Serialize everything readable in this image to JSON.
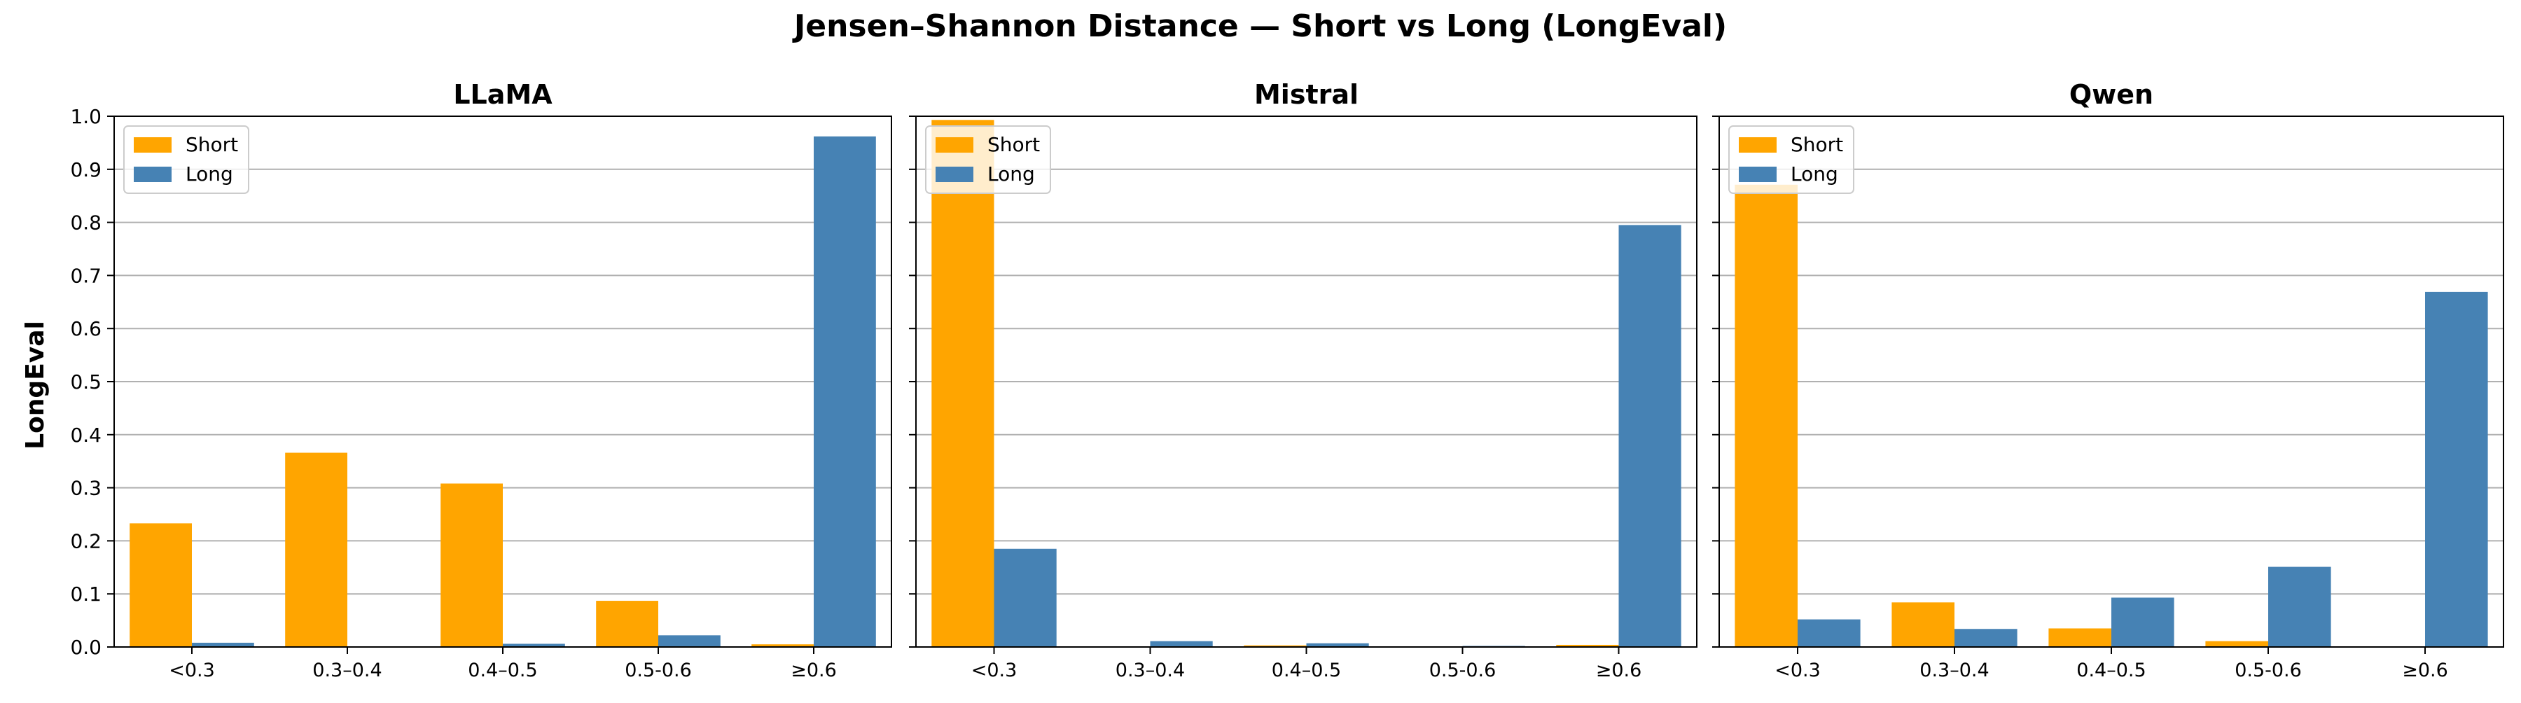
{
  "figure": {
    "title": "Jensen–Shannon Distance — Short vs Long (LongEval)",
    "ylabel": "LongEval"
  },
  "colors": {
    "short": "#FFA500",
    "long": "#4682B4",
    "grid": "#b0b0b0"
  },
  "chart_data": [
    {
      "type": "bar",
      "title": "LLaMA",
      "categories": [
        "<0.3",
        "0.3–0.4",
        "0.4–0.5",
        "0.5-0.6",
        "≥0.6"
      ],
      "series": [
        {
          "name": "Short",
          "values": [
            0.233,
            0.366,
            0.308,
            0.087,
            0.005
          ]
        },
        {
          "name": "Long",
          "values": [
            0.008,
            0.0,
            0.006,
            0.022,
            0.962
          ]
        }
      ],
      "ylim": [
        0,
        1.0
      ],
      "yticks": [
        "0.0",
        "0.1",
        "0.2",
        "0.3",
        "0.4",
        "0.5",
        "0.6",
        "0.7",
        "0.8",
        "0.9",
        "1.0"
      ],
      "ylabel": "LongEval",
      "grid": true,
      "legend": "top-left"
    },
    {
      "type": "bar",
      "title": "Mistral",
      "categories": [
        "<0.3",
        "0.3–0.4",
        "0.4–0.5",
        "0.5-0.6",
        "≥0.6"
      ],
      "series": [
        {
          "name": "Short",
          "values": [
            0.993,
            0.0,
            0.003,
            0.0,
            0.004
          ]
        },
        {
          "name": "Long",
          "values": [
            0.185,
            0.011,
            0.007,
            0.002,
            0.795
          ]
        }
      ],
      "ylim": [
        0,
        1.0
      ],
      "grid": true,
      "legend": "top-left"
    },
    {
      "type": "bar",
      "title": "Qwen",
      "categories": [
        "<0.3",
        "0.3–0.4",
        "0.4–0.5",
        "0.5-0.6",
        "≥0.6"
      ],
      "series": [
        {
          "name": "Short",
          "values": [
            0.871,
            0.084,
            0.035,
            0.011,
            0.0
          ]
        },
        {
          "name": "Long",
          "values": [
            0.052,
            0.034,
            0.093,
            0.151,
            0.669
          ]
        }
      ],
      "ylim": [
        0,
        1.0
      ],
      "grid": true,
      "legend": "top-left"
    }
  ]
}
